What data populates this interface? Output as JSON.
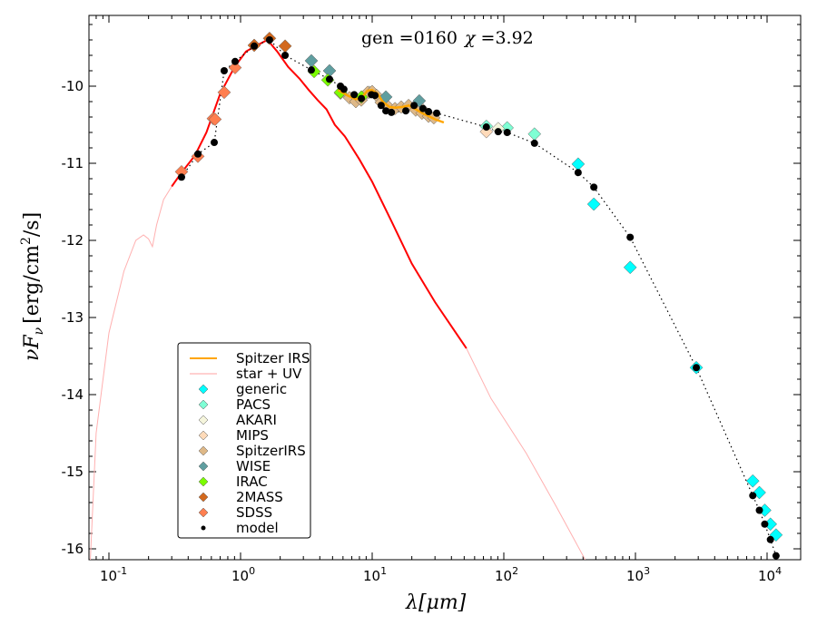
{
  "chart_data": {
    "type": "scatter",
    "title": "gen =0160  χ =3.92",
    "title_parts": {
      "gen_label": "gen =",
      "gen": "0160",
      "chi_label": "χ =",
      "chi": "3.92"
    },
    "xlabel": "λ[μm]",
    "ylabel": "νF_ν [erg/cm²/s]",
    "ylabel_parts": {
      "a": "νF",
      "sub": "ν",
      "b": "[erg/cm",
      "sup": "2",
      "c": "/s]"
    },
    "xlabel_parts": {
      "a": "λ[",
      "b": "μm",
      "c": "]"
    },
    "xscale": "log",
    "xlim": [
      0.07,
      18000
    ],
    "ylim": [
      -16.2,
      -9.08
    ],
    "xticks": [
      {
        "base": "10",
        "exp": "-1",
        "v": 0.1
      },
      {
        "base": "10",
        "exp": "0",
        "v": 1
      },
      {
        "base": "10",
        "exp": "1",
        "v": 10
      },
      {
        "base": "10",
        "exp": "2",
        "v": 100
      },
      {
        "base": "10",
        "exp": "3",
        "v": 1000
      },
      {
        "base": "10",
        "exp": "4",
        "v": 10000
      }
    ],
    "yticks": [
      "-10",
      "-11",
      "-12",
      "-13",
      "-14",
      "-15",
      "-16"
    ],
    "legend_position": "lower-left",
    "lines": [
      {
        "name": "Spitzer IRS",
        "color": "#ffa500",
        "points": [
          [
            5.5,
            -10.05
          ],
          [
            6.5,
            -10.12
          ],
          [
            7.5,
            -10.17
          ],
          [
            8.3,
            -10.15
          ],
          [
            9.2,
            -10.06
          ],
          [
            10,
            -10.05
          ],
          [
            11,
            -10.1
          ],
          [
            12,
            -10.2
          ],
          [
            13.5,
            -10.27
          ],
          [
            15,
            -10.28
          ],
          [
            17,
            -10.27
          ],
          [
            19,
            -10.25
          ],
          [
            21.5,
            -10.3
          ],
          [
            24,
            -10.35
          ],
          [
            27,
            -10.39
          ],
          [
            30,
            -10.43
          ],
          [
            35,
            -10.47
          ]
        ]
      },
      {
        "name": "star + UV",
        "color": "#ff0000",
        "points": [
          [
            0.072,
            -16.2
          ],
          [
            0.08,
            -14.5
          ],
          [
            0.1,
            -13.2
          ],
          [
            0.13,
            -12.4
          ],
          [
            0.16,
            -12.0
          ],
          [
            0.183,
            -11.93
          ],
          [
            0.2,
            -11.98
          ],
          [
            0.214,
            -12.08
          ],
          [
            0.23,
            -11.8
          ],
          [
            0.26,
            -11.47
          ],
          [
            0.3,
            -11.3
          ],
          [
            0.356,
            -11.12
          ],
          [
            0.45,
            -10.9
          ],
          [
            0.55,
            -10.6
          ],
          [
            0.7,
            -10.1
          ],
          [
            0.9,
            -9.75
          ],
          [
            1.1,
            -9.55
          ],
          [
            1.3,
            -9.48
          ],
          [
            1.6,
            -9.4
          ],
          [
            1.9,
            -9.55
          ],
          [
            2.3,
            -9.75
          ],
          [
            2.8,
            -9.9
          ],
          [
            3.3,
            -10.05
          ],
          [
            3.85,
            -10.18
          ],
          [
            4.5,
            -10.3
          ],
          [
            5.2,
            -10.5
          ],
          [
            6.2,
            -10.65
          ],
          [
            8,
            -10.95
          ],
          [
            10,
            -11.24
          ],
          [
            14,
            -11.75
          ],
          [
            20,
            -12.3
          ],
          [
            30,
            -12.8
          ],
          [
            52,
            -13.4
          ],
          [
            80,
            -14.05
          ],
          [
            148,
            -14.76
          ],
          [
            250,
            -15.45
          ],
          [
            415,
            -16.14
          ]
        ]
      }
    ],
    "series": [
      {
        "name": "generic",
        "color": "#00ffff",
        "points": [
          [
            367,
            -11.01
          ],
          [
            483,
            -11.53
          ],
          [
            912,
            -12.35
          ],
          [
            2900,
            -13.65
          ],
          [
            7790,
            -15.12
          ],
          [
            8740,
            -15.27
          ],
          [
            9600,
            -15.5
          ],
          [
            10600,
            -15.68
          ],
          [
            11700,
            -15.82
          ]
        ]
      },
      {
        "name": "PACS",
        "color": "#7fffd4",
        "points": [
          [
            73.7,
            -10.52
          ],
          [
            106,
            -10.54
          ],
          [
            171,
            -10.62
          ]
        ]
      },
      {
        "name": "AKARI",
        "color": "#f5f5dc",
        "points": [
          [
            90.6,
            -10.55
          ],
          [
            9.5,
            -10.08
          ]
        ]
      },
      {
        "name": "MIPS",
        "color": "#ffdab9",
        "points": [
          [
            73.7,
            -10.59
          ],
          [
            24,
            -10.3
          ]
        ]
      },
      {
        "name": "SpitzerIRS",
        "color": "#deb887",
        "points": [
          [
            5.74,
            -10.09
          ],
          [
            6.72,
            -10.15
          ],
          [
            7.51,
            -10.2
          ],
          [
            8.26,
            -10.18
          ],
          [
            9.24,
            -10.08
          ],
          [
            10,
            -10.07
          ],
          [
            10.8,
            -10.12
          ],
          [
            11.7,
            -10.21
          ],
          [
            13.3,
            -10.27
          ],
          [
            14.9,
            -10.29
          ],
          [
            16.6,
            -10.27
          ],
          [
            18.9,
            -10.25
          ],
          [
            21.4,
            -10.31
          ],
          [
            23.9,
            -10.35
          ],
          [
            26.8,
            -10.39
          ],
          [
            29.4,
            -10.41
          ]
        ]
      },
      {
        "name": "WISE",
        "color": "#5f9ea0",
        "points": [
          [
            3.45,
            -9.67
          ],
          [
            4.74,
            -9.8
          ],
          [
            12.7,
            -10.14
          ],
          [
            22.8,
            -10.19
          ]
        ]
      },
      {
        "name": "IRAC",
        "color": "#7cfc00",
        "points": [
          [
            3.62,
            -9.81
          ],
          [
            4.6,
            -9.92
          ],
          [
            5.74,
            -10.08
          ],
          [
            8.28,
            -10.14
          ]
        ]
      },
      {
        "name": "2MASS",
        "color": "#d2691e",
        "points": [
          [
            1.27,
            -9.47
          ],
          [
            1.66,
            -9.38
          ],
          [
            2.18,
            -9.48
          ]
        ]
      },
      {
        "name": "SDSS",
        "color": "#ff7f50",
        "points": [
          [
            0.356,
            -11.11
          ],
          [
            0.474,
            -10.91
          ],
          [
            0.62,
            -10.42
          ],
          [
            0.64,
            -10.43
          ],
          [
            0.751,
            -10.08
          ],
          [
            0.909,
            -9.76
          ]
        ]
      },
      {
        "name": "model",
        "color": "#000000",
        "points": [
          [
            0.356,
            -11.18
          ],
          [
            0.474,
            -10.88
          ],
          [
            0.631,
            -10.73
          ],
          [
            0.751,
            -9.8
          ],
          [
            0.909,
            -9.68
          ],
          [
            1.27,
            -9.48
          ],
          [
            1.66,
            -9.4
          ],
          [
            2.18,
            -9.6
          ],
          [
            3.45,
            -9.79
          ],
          [
            4.74,
            -9.91
          ],
          [
            5.74,
            -10.0
          ],
          [
            6.1,
            -10.04
          ],
          [
            7.3,
            -10.11
          ],
          [
            8.28,
            -10.16
          ],
          [
            9.87,
            -10.11
          ],
          [
            10.5,
            -10.12
          ],
          [
            11.7,
            -10.25
          ],
          [
            12.7,
            -10.32
          ],
          [
            14,
            -10.34
          ],
          [
            18,
            -10.32
          ],
          [
            20.8,
            -10.25
          ],
          [
            24.3,
            -10.29
          ],
          [
            26.8,
            -10.33
          ],
          [
            30.9,
            -10.35
          ],
          [
            73.7,
            -10.53
          ],
          [
            90.6,
            -10.59
          ],
          [
            106,
            -10.6
          ],
          [
            171,
            -10.74
          ],
          [
            367,
            -11.12
          ],
          [
            483,
            -11.31
          ],
          [
            912,
            -11.96
          ],
          [
            2900,
            -13.65
          ],
          [
            7790,
            -15.31
          ],
          [
            8740,
            -15.5
          ],
          [
            9600,
            -15.68
          ],
          [
            10600,
            -15.88
          ],
          [
            11700,
            -16.09
          ]
        ]
      }
    ]
  }
}
